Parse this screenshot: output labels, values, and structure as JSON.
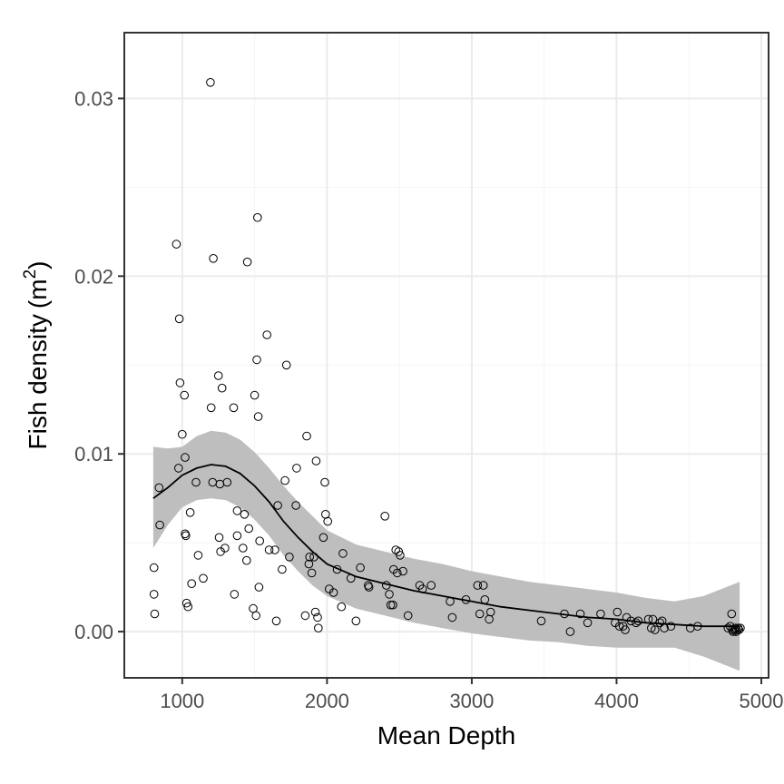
{
  "chart_data": {
    "type": "scatter",
    "xlabel": "Mean Depth",
    "ylabel_main": "Fish density",
    "ylabel_unit_base": "m",
    "ylabel_unit_exp": "2",
    "xlim": [
      600,
      5050
    ],
    "ylim": [
      -0.0026,
      0.0337
    ],
    "x_ticks": [
      1000,
      2000,
      3000,
      4000,
      5000
    ],
    "x_tick_labels": [
      "1000",
      "2000",
      "3000",
      "4000",
      "5000"
    ],
    "y_ticks": [
      0.0,
      0.01,
      0.02,
      0.03
    ],
    "y_tick_labels": [
      "0.00",
      "0.01",
      "0.02",
      "0.03"
    ],
    "grid": true,
    "points": [
      [
        805,
        0.0036
      ],
      [
        805,
        0.0021
      ],
      [
        810,
        0.001
      ],
      [
        840,
        0.0081
      ],
      [
        845,
        0.006
      ],
      [
        960,
        0.0218
      ],
      [
        980,
        0.0176
      ],
      [
        985,
        0.014
      ],
      [
        975,
        0.0092
      ],
      [
        1000,
        0.0111
      ],
      [
        1015,
        0.0133
      ],
      [
        1020,
        0.0098
      ],
      [
        1020,
        0.0055
      ],
      [
        1025,
        0.0054
      ],
      [
        1030,
        0.0016
      ],
      [
        1040,
        0.0014
      ],
      [
        1055,
        0.0067
      ],
      [
        1065,
        0.0027
      ],
      [
        1095,
        0.0084
      ],
      [
        1110,
        0.0043
      ],
      [
        1145,
        0.003
      ],
      [
        1195,
        0.0309
      ],
      [
        1200,
        0.0126
      ],
      [
        1210,
        0.0084
      ],
      [
        1215,
        0.021
      ],
      [
        1250,
        0.0144
      ],
      [
        1255,
        0.0053
      ],
      [
        1260,
        0.0083
      ],
      [
        1265,
        0.0045
      ],
      [
        1275,
        0.0137
      ],
      [
        1295,
        0.0047
      ],
      [
        1310,
        0.0084
      ],
      [
        1355,
        0.0126
      ],
      [
        1360,
        0.0021
      ],
      [
        1380,
        0.0068
      ],
      [
        1380,
        0.0054
      ],
      [
        1420,
        0.0047
      ],
      [
        1430,
        0.0066
      ],
      [
        1445,
        0.004
      ],
      [
        1450,
        0.0208
      ],
      [
        1460,
        0.0058
      ],
      [
        1490,
        0.0013
      ],
      [
        1500,
        0.0133
      ],
      [
        1510,
        0.0009
      ],
      [
        1515,
        0.0153
      ],
      [
        1520,
        0.0233
      ],
      [
        1525,
        0.0121
      ],
      [
        1530,
        0.0025
      ],
      [
        1535,
        0.0051
      ],
      [
        1585,
        0.0167
      ],
      [
        1600,
        0.0046
      ],
      [
        1640,
        0.0046
      ],
      [
        1650,
        0.0006
      ],
      [
        1660,
        0.0071
      ],
      [
        1690,
        0.0035
      ],
      [
        1710,
        0.0085
      ],
      [
        1720,
        0.015
      ],
      [
        1740,
        0.0042
      ],
      [
        1785,
        0.0071
      ],
      [
        1790,
        0.0092
      ],
      [
        1850,
        0.0009
      ],
      [
        1860,
        0.011
      ],
      [
        1875,
        0.0038
      ],
      [
        1880,
        0.0042
      ],
      [
        1895,
        0.0033
      ],
      [
        1910,
        0.0042
      ],
      [
        1920,
        0.0011
      ],
      [
        1925,
        0.0096
      ],
      [
        1935,
        0.0008
      ],
      [
        1940,
        0.0002
      ],
      [
        1975,
        0.0053
      ],
      [
        1985,
        0.0084
      ],
      [
        1990,
        0.0066
      ],
      [
        2005,
        0.0062
      ],
      [
        2015,
        0.0024
      ],
      [
        2045,
        0.0022
      ],
      [
        2070,
        0.0035
      ],
      [
        2100,
        0.0014
      ],
      [
        2110,
        0.0044
      ],
      [
        2165,
        0.003
      ],
      [
        2200,
        0.0006
      ],
      [
        2230,
        0.0036
      ],
      [
        2285,
        0.0026
      ],
      [
        2290,
        0.0025
      ],
      [
        2400,
        0.0065
      ],
      [
        2410,
        0.0026
      ],
      [
        2430,
        0.0021
      ],
      [
        2440,
        0.0015
      ],
      [
        2455,
        0.0015
      ],
      [
        2460,
        0.0035
      ],
      [
        2475,
        0.0046
      ],
      [
        2485,
        0.0033
      ],
      [
        2495,
        0.0045
      ],
      [
        2505,
        0.0043
      ],
      [
        2525,
        0.0034
      ],
      [
        2560,
        0.0009
      ],
      [
        2640,
        0.0026
      ],
      [
        2660,
        0.0024
      ],
      [
        2720,
        0.0026
      ],
      [
        2850,
        0.0017
      ],
      [
        2865,
        0.0008
      ],
      [
        2960,
        0.0018
      ],
      [
        3040,
        0.0026
      ],
      [
        3055,
        0.001
      ],
      [
        3080,
        0.0026
      ],
      [
        3090,
        0.0018
      ],
      [
        3120,
        0.0007
      ],
      [
        3130,
        0.0011
      ],
      [
        3480,
        0.0006
      ],
      [
        3640,
        0.001
      ],
      [
        3680,
        0.0
      ],
      [
        3750,
        0.001
      ],
      [
        3800,
        0.0005
      ],
      [
        3890,
        0.001
      ],
      [
        3990,
        0.0005
      ],
      [
        4005,
        0.0011
      ],
      [
        4020,
        0.0003
      ],
      [
        4045,
        0.0003
      ],
      [
        4060,
        0.0001
      ],
      [
        4070,
        0.0008
      ],
      [
        4100,
        0.0006
      ],
      [
        4135,
        0.0005
      ],
      [
        4150,
        0.0006
      ],
      [
        4220,
        0.0007
      ],
      [
        4240,
        0.0002
      ],
      [
        4250,
        0.0007
      ],
      [
        4265,
        0.0001
      ],
      [
        4300,
        0.0005
      ],
      [
        4315,
        0.0006
      ],
      [
        4330,
        0.0002
      ],
      [
        4375,
        0.0003
      ],
      [
        4510,
        0.0002
      ],
      [
        4560,
        0.0003
      ],
      [
        4770,
        0.0002
      ],
      [
        4785,
        0.0003
      ],
      [
        4795,
        0.001
      ],
      [
        4800,
        0.0001
      ],
      [
        4805,
        0.0
      ],
      [
        4815,
        0.0001
      ],
      [
        4820,
        0.0002
      ],
      [
        4825,
        0.0
      ],
      [
        4830,
        0.0001
      ],
      [
        4840,
        0.0002
      ],
      [
        4845,
        0.0001
      ],
      [
        4855,
        0.0002
      ]
    ],
    "smooth": {
      "x": [
        800,
        900,
        1000,
        1100,
        1200,
        1300,
        1400,
        1500,
        1600,
        1700,
        1800,
        1900,
        2000,
        2200,
        2400,
        2600,
        2800,
        3000,
        3200,
        3400,
        3600,
        3800,
        4000,
        4200,
        4400,
        4600,
        4850
      ],
      "y": [
        0.0075,
        0.0081,
        0.0088,
        0.0092,
        0.0094,
        0.0093,
        0.0089,
        0.0082,
        0.0073,
        0.0062,
        0.0053,
        0.0045,
        0.0038,
        0.0031,
        0.0027,
        0.0023,
        0.002,
        0.0017,
        0.0014,
        0.0012,
        0.001,
        0.0008,
        0.0007,
        0.0005,
        0.0004,
        0.0003,
        0.0003
      ],
      "upper": [
        0.0104,
        0.0103,
        0.0104,
        0.011,
        0.0113,
        0.0112,
        0.0108,
        0.0101,
        0.0092,
        0.0082,
        0.0073,
        0.0065,
        0.0057,
        0.0049,
        0.0045,
        0.0041,
        0.0038,
        0.0034,
        0.0031,
        0.0028,
        0.0026,
        0.0024,
        0.0022,
        0.0019,
        0.0017,
        0.002,
        0.0028
      ],
      "lower": [
        0.0047,
        0.006,
        0.007,
        0.0074,
        0.0075,
        0.0074,
        0.007,
        0.0063,
        0.0054,
        0.0043,
        0.0034,
        0.0026,
        0.002,
        0.0013,
        0.0009,
        0.0005,
        0.0002,
        -0.0001,
        -0.0003,
        -0.0005,
        -0.0006,
        -0.0008,
        -0.0009,
        -0.0009,
        -0.0009,
        -0.0014,
        -0.0022
      ]
    },
    "colors": {
      "band": "#bebebe",
      "line": "#000000",
      "point_stroke": "#000000",
      "grid_major": "#ebebeb",
      "grid_minor": "#f5f5f5",
      "panel_border": "#333333"
    }
  }
}
